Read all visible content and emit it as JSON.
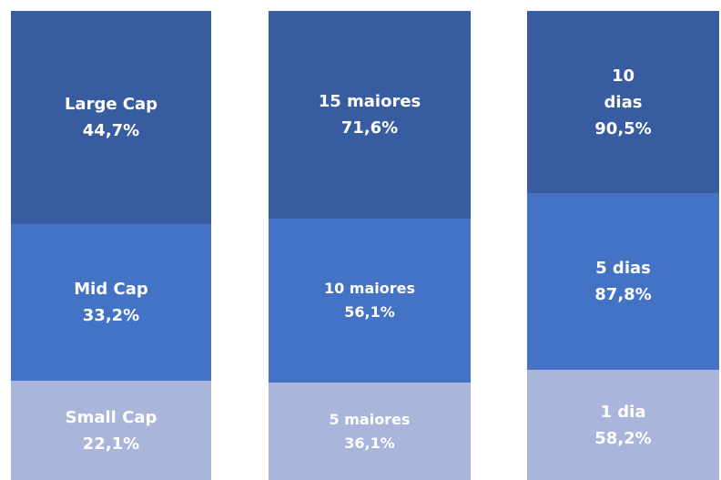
{
  "columns": [
    {
      "segments": [
        {
          "label": "Large Cap",
          "value": "44,7%"
        },
        {
          "label": "Mid Cap",
          "value": "33,2%"
        },
        {
          "label": "Small Cap",
          "value": "22,1%"
        }
      ]
    },
    {
      "segments": [
        {
          "label": "15 maiores",
          "value": "71,6%"
        },
        {
          "label": "10 maiores",
          "value": "56,1%"
        },
        {
          "label": "5 maiores",
          "value": "36,1%"
        }
      ]
    },
    {
      "segments": [
        {
          "label": "10 dias",
          "value": "90,5%"
        },
        {
          "label": "5 dias",
          "value": "87,8%"
        },
        {
          "label": "1 dia",
          "value": "58,2%"
        }
      ]
    }
  ]
}
